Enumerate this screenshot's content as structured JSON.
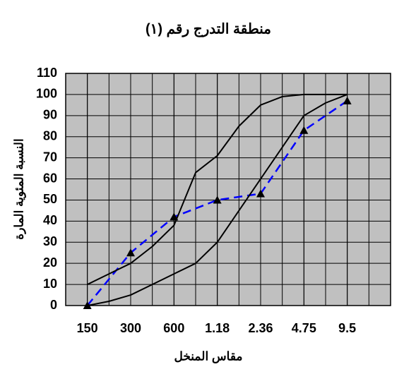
{
  "chart_data": {
    "type": "line",
    "title": "منطقة التدرج رقم (١)",
    "x_label": "مقاس المنخل",
    "y_label": "النسبة المئوية المارة",
    "xlim": [
      -0.5,
      7
    ],
    "xticks": [
      {
        "value": 0,
        "label": "150"
      },
      {
        "value": 1,
        "label": "300"
      },
      {
        "value": 2,
        "label": "600"
      },
      {
        "value": 3,
        "label": "1.18"
      },
      {
        "value": 4,
        "label": "2.36"
      },
      {
        "value": 5,
        "label": "4.75"
      },
      {
        "value": 6,
        "label": "9.5"
      }
    ],
    "ylim": [
      0,
      110
    ],
    "yticks": [
      0,
      10,
      20,
      30,
      40,
      50,
      60,
      70,
      80,
      90,
      100,
      110
    ],
    "grid": true,
    "background": "#c0c0c0",
    "series": [
      {
        "color": "#0000ff",
        "dashed": true,
        "marker": "triangle",
        "x": [
          0,
          1,
          2,
          3,
          4,
          5,
          6
        ],
        "values": [
          0,
          25,
          42,
          50,
          53,
          83,
          97
        ]
      },
      {
        "color": "#000000",
        "dashed": false,
        "marker": null,
        "x": [
          0,
          0.5,
          1,
          1.5,
          2,
          2.5,
          3,
          3.5,
          4,
          4.5,
          5,
          6
        ],
        "values": [
          10,
          15,
          20,
          28,
          38,
          63,
          71,
          85,
          95,
          99,
          100,
          100
        ]
      },
      {
        "color": "#000000",
        "dashed": false,
        "marker": null,
        "x": [
          0,
          0.5,
          1,
          1.5,
          2,
          2.5,
          3,
          3.5,
          4,
          4.5,
          5,
          5.5,
          6
        ],
        "values": [
          0,
          2,
          5,
          10,
          15,
          20,
          30,
          45,
          60,
          75,
          90,
          96,
          100
        ]
      }
    ]
  }
}
